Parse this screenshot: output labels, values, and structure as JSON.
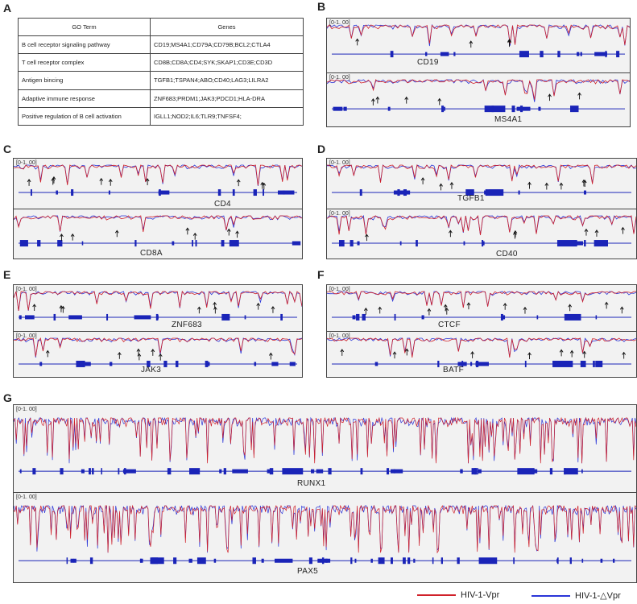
{
  "panels": {
    "A": "A",
    "B": "B",
    "C": "C",
    "D": "D",
    "E": "E",
    "F": "F",
    "G": "G"
  },
  "go_table": {
    "headers": [
      "GO Term",
      "Genes"
    ],
    "rows": [
      [
        "B cell receptor signaling pathway",
        "CD19;MS4A1;CD79A;CD79B;BCL2;CTLA4"
      ],
      [
        "T cell receptor complex",
        "CD8B;CD8A;CD4;SYK;SKAP1;CD3E;CD3D"
      ],
      [
        "Antigen bincing",
        "TGFB1;TSPAN4;ABO;CD40;LAG3;LILRA2"
      ],
      [
        "Adaptive immune response",
        "ZNF683;PRDM1;JAK3;PDCD1;HLA-DRA"
      ],
      [
        "Positive regulation of B cell activation",
        "IGLL1;NOD2;IL6;TLR9;TNFSF4;"
      ]
    ]
  },
  "range_label": "[0-1. 00]",
  "genes": {
    "B1": "CD19",
    "B2": "MS4A1",
    "C1": "CD4",
    "C2": "CD8A",
    "D1": "TGFB1",
    "D2": "CD40",
    "E1": "ZNF683",
    "E2": "JAK3",
    "F1": "CTCF",
    "F2": "BATF",
    "G1": "RUNX1",
    "G2": "PAX5"
  },
  "legend": {
    "vpr": {
      "label": "HIV-1-Vpr",
      "color": "#d0212a"
    },
    "dvpr": {
      "label": "HIV-1-△Vpr",
      "color": "#2a35d8"
    }
  },
  "track_colors": {
    "gene_model": "#1a24b8",
    "arrow": "#111111"
  }
}
